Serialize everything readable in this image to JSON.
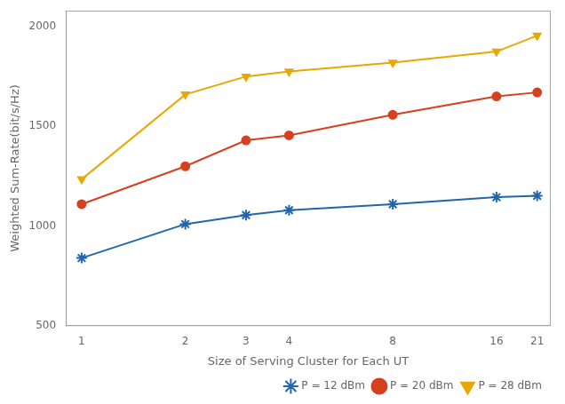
{
  "chart_data": {
    "type": "line",
    "x": [
      1,
      2,
      3,
      4,
      8,
      16,
      21
    ],
    "series": [
      {
        "name": "P = 12 dBm",
        "color": "#2166ac",
        "marker": "star",
        "values": [
          840,
          1010,
          1055,
          1080,
          1110,
          1145,
          1152
        ]
      },
      {
        "name": "P = 20 dBm",
        "color": "#d6401f",
        "marker": "circle",
        "values": [
          1110,
          1300,
          1430,
          1455,
          1558,
          1650,
          1670
        ]
      },
      {
        "name": "P = 28 dBm",
        "color": "#e8a800",
        "marker": "triangle_down",
        "values": [
          1235,
          1660,
          1750,
          1775,
          1820,
          1875,
          1955
        ]
      }
    ],
    "xlabel": "Size of Serving Cluster for Each UT",
    "ylabel": "Weighted Sum-Rate(bit/s/Hz)",
    "log": "x",
    "xlim": [
      0.9,
      23
    ],
    "xticks": [
      1,
      2,
      3,
      4,
      8,
      16,
      21
    ],
    "ylim": [
      500,
      2080
    ],
    "yticks": [
      500,
      1000,
      1500,
      2000
    ],
    "grid": false,
    "legend": "lower right"
  }
}
